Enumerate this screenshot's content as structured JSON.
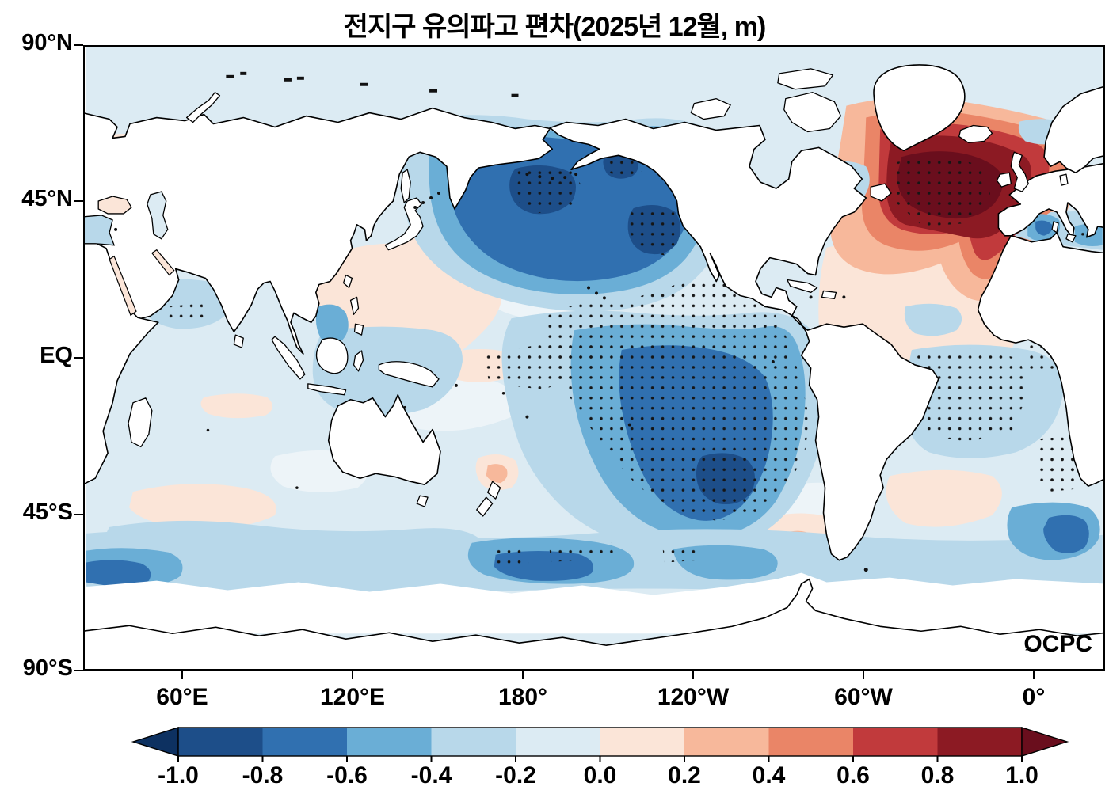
{
  "title": "전지구 유의파고 편차(2025년 12월, m)",
  "watermark": {
    "text": "OCPC",
    "wave_glyph": "≈"
  },
  "axes": {
    "y_ticks": [
      "90°N",
      "45°N",
      "EQ",
      "45°S",
      "90°S"
    ],
    "x_ticks": [
      "60°E",
      "120°E",
      "180°",
      "120°W",
      "60°W",
      "0°"
    ]
  },
  "colorbar": {
    "tick_labels": [
      "-1.0",
      "-0.8",
      "-0.6",
      "-0.4",
      "-0.2",
      "0.0",
      "0.2",
      "0.4",
      "0.6",
      "0.8",
      "1.0"
    ],
    "segment_colors": [
      "#1d4e89",
      "#3070b0",
      "#6aaed6",
      "#b8d8ea",
      "#dcebf3",
      "#fbe5d8",
      "#f7b89b",
      "#ea8567",
      "#c13a3c",
      "#8c1a23"
    ],
    "under_color": "#0d3161",
    "over_color": "#6a0e1d"
  },
  "chart_data": {
    "type": "heatmap",
    "subtype": "filled-contour world map (equirectangular, Pacific-centered ~25°E–385°E)",
    "title": "전지구 유의파고 편차(2025년 12월, m)",
    "title_translation": "Global significant wave height anomaly (December 2025, m)",
    "units": "m",
    "xlabel_ticks": [
      "60°E",
      "120°E",
      "180°",
      "120°W",
      "60°W",
      "0°"
    ],
    "ylabel_ticks": [
      "90°N",
      "45°N",
      "EQ",
      "45°S",
      "90°S"
    ],
    "contour_levels": [
      -1.0,
      -0.8,
      -0.6,
      -0.4,
      -0.2,
      0.0,
      0.2,
      0.4,
      0.6,
      0.8,
      1.0
    ],
    "legend_position": "bottom horizontal colorbar with under/over arrow extensions",
    "grid": false,
    "stippling": "black dot hatching marks statistically significant anomaly regions",
    "no_data": "land areas and the band poleward of ~62°S are white",
    "features": [
      {
        "region": "Gulf of Alaska / central North Pacific (38–57°N, 170°E–130°W)",
        "anomaly_m": -1.0,
        "note": "strongest negative anomaly, three dark stippled cores"
      },
      {
        "region": "eastern tropical and South Pacific (10°N–45°S, 160°W–75°W)",
        "anomaly_m": -0.6,
        "note": "broad negative tongue, densely stippled"
      },
      {
        "region": "subpolar North Atlantic south of Greenland/Iceland (45–62°N, 55°W–10°W)",
        "anomaly_m": 1.0,
        "note": "strongest positive anomaly, stippled maroon core, red tongue along Iberia/Morocco coast"
      },
      {
        "region": "Sea of Okhotsk west of Kamchatka",
        "anomaly_m": 0.7
      },
      {
        "region": "Barents Sea",
        "anomaly_m": 0.35
      },
      {
        "region": "equatorial Atlantic (5°N–20°S, 35°W–10°E)",
        "anomaly_m": -0.3,
        "note": "densely stippled"
      },
      {
        "region": "Indian Ocean",
        "anomaly_m": -0.15,
        "note": "weak negative with scattered weak positive patches"
      },
      {
        "region": "Southern Ocean 45–60°S",
        "anomaly_m": -0.5,
        "note": "zonal negative band, −0.8 cores south of Australia/New Zealand and near 0°E"
      },
      {
        "region": "subtropical northwest Pacific (20–38°N, 140°E–175°E)",
        "anomaly_m": 0.15
      },
      {
        "region": "central subtropical North Atlantic",
        "anomaly_m": 0.1
      },
      {
        "region": "Tasman Sea west of New Zealand",
        "anomaly_m": 0.3
      },
      {
        "region": "southeast Pacific near southern South America",
        "anomaly_m": 0.2
      },
      {
        "region": "Mediterranean Sea",
        "anomaly_m": -0.5
      }
    ]
  }
}
